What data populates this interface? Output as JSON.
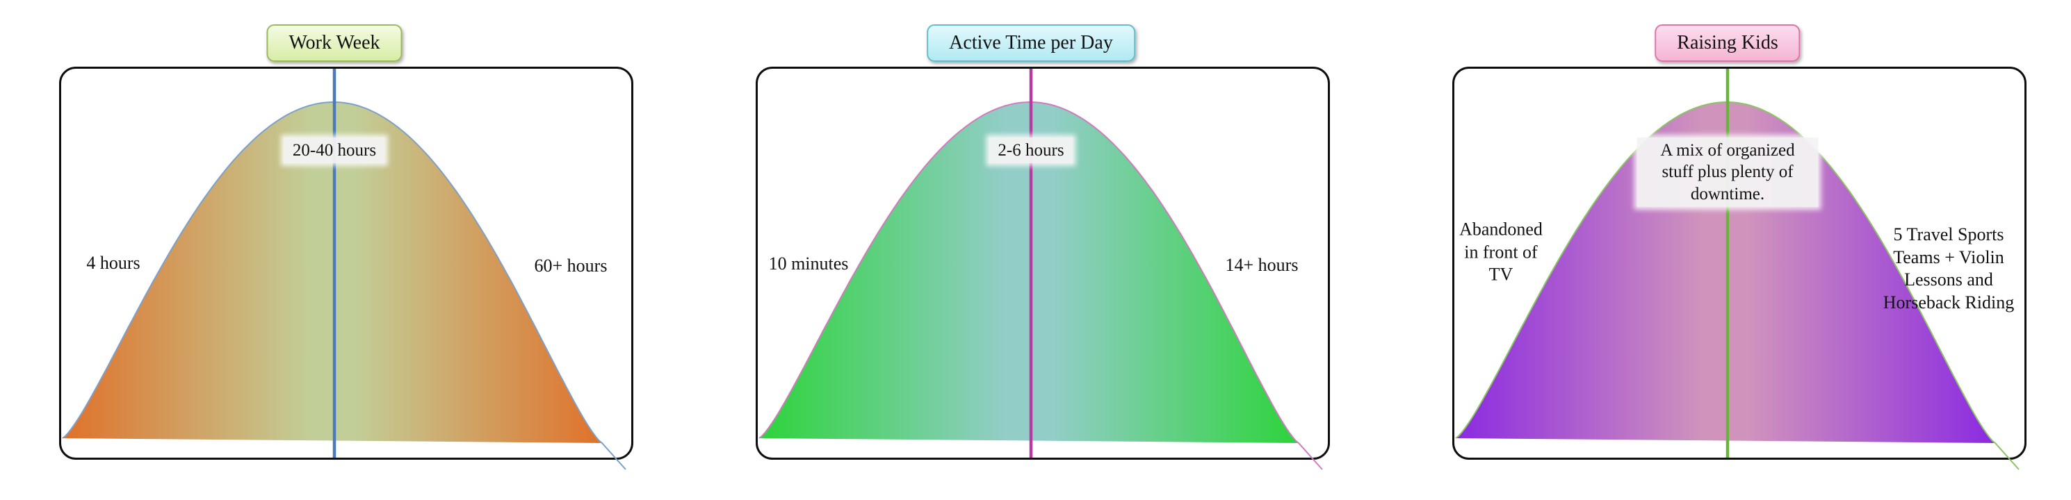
{
  "page": {
    "background": "#ffffff"
  },
  "chart_data": [
    {
      "type": "area",
      "subtype": "bell-curve-distribution",
      "title": "Work Week",
      "annotations": {
        "left": "4 hours",
        "peak": "20-40 hours",
        "right": "60+ hours"
      },
      "axes": {
        "visible": false
      },
      "grid": false,
      "peak_marker": "vertical-line-at-peak",
      "colors": {
        "title_box_top": "#f4fbe3",
        "title_box_bottom": "#d8eda6",
        "title_box_border": "#9cba5d",
        "fill_edge": "#e0712a",
        "fill_center": "#c2ce98",
        "curve_stroke": "#7da0c9",
        "center_line": "#4a7ab8"
      }
    },
    {
      "type": "area",
      "subtype": "bell-curve-distribution",
      "title": "Active Time per Day",
      "annotations": {
        "left": "10 minutes",
        "peak": "2-6 hours",
        "right": "14+ hours"
      },
      "axes": {
        "visible": false
      },
      "grid": false,
      "peak_marker": "vertical-line-at-peak",
      "colors": {
        "title_box_top": "#e2f9fd",
        "title_box_bottom": "#b2e9f2",
        "title_box_border": "#62bec9",
        "fill_edge": "#2dd33b",
        "fill_center": "#93cdc8",
        "curve_stroke": "#cf7cbc",
        "center_line": "#b8399f"
      }
    },
    {
      "type": "area",
      "subtype": "bell-curve-distribution",
      "title": "Raising Kids",
      "annotations": {
        "left": "Abandoned in front of TV",
        "peak": "A mix of organized stuff plus plenty of downtime.",
        "right": "5 Travel Sports Teams + Violin Lessons and Horseback Riding"
      },
      "axes": {
        "visible": false
      },
      "grid": false,
      "peak_marker": "vertical-line-at-peak",
      "colors": {
        "title_box_top": "#fbdeee",
        "title_box_bottom": "#f5b5d4",
        "title_box_border": "#de74a8",
        "fill_edge": "#8b2ae1",
        "fill_center": "#d094bc",
        "curve_stroke": "#8cc465",
        "center_line": "#67b33c"
      }
    }
  ]
}
